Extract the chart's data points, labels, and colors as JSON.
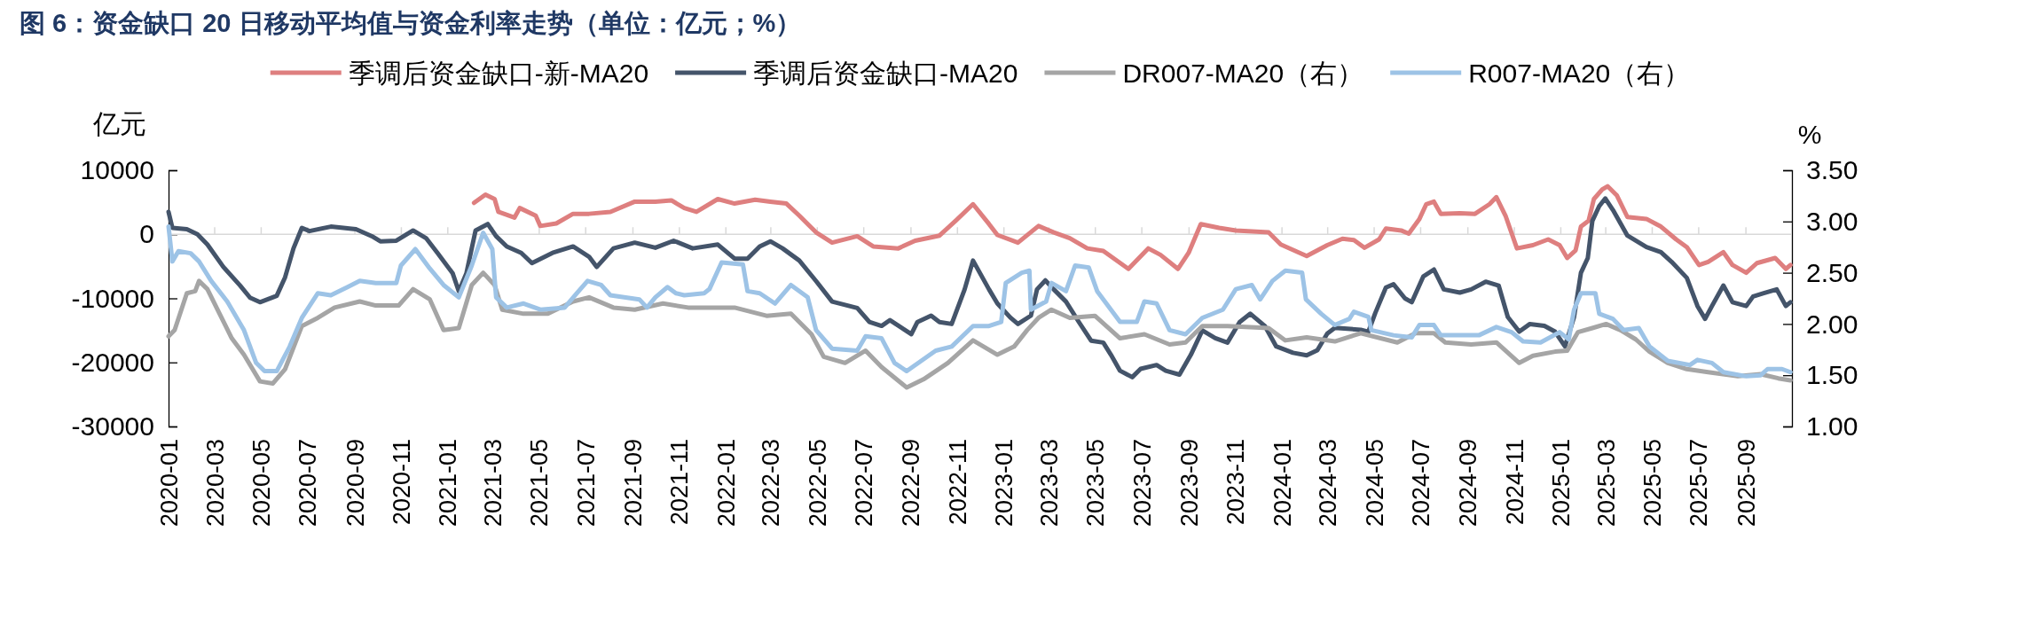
{
  "chart_data": {
    "type": "line",
    "title": "图 6：资金缺口 20 日移动平均值与资金利率走势（单位：亿元；%）",
    "ylabel": "亿元",
    "y2label": "%",
    "xlim": [
      "2020-01-01",
      "2025-11-01"
    ],
    "xticks": [
      "2020-01",
      "2020-03",
      "2020-05",
      "2020-07",
      "2020-09",
      "2020-11",
      "2021-01",
      "2021-03",
      "2021-05",
      "2021-07",
      "2021-09",
      "2021-11",
      "2022-01",
      "2022-03",
      "2022-05",
      "2022-07",
      "2022-09",
      "2022-11",
      "2023-01",
      "2023-03",
      "2023-05",
      "2023-07",
      "2023-09",
      "2023-11",
      "2024-01",
      "2024-03",
      "2024-05",
      "2024-07",
      "2024-09",
      "2024-11",
      "2025-01",
      "2025-03",
      "2025-05",
      "2025-07",
      "2025-09"
    ],
    "ylim": [
      -30000,
      10000
    ],
    "yticks": [
      -30000,
      -20000,
      -10000,
      0,
      10000
    ],
    "y2lim": [
      1.0,
      3.5
    ],
    "y2ticks": [
      {
        "value": 1.0,
        "label": "1.00"
      },
      {
        "value": 1.5,
        "label": "1.50"
      },
      {
        "value": 2.0,
        "label": "2.00"
      },
      {
        "value": 2.5,
        "label": "2.50"
      },
      {
        "value": 3.0,
        "label": "3.00"
      },
      {
        "value": 3.5,
        "label": "3.50"
      }
    ],
    "grid": false,
    "ref_lines": [
      {
        "axis": "y",
        "value": 0,
        "color": "#d9d9d9"
      }
    ],
    "legend": "top",
    "marker": "none",
    "line_style": "solid",
    "series": [
      {
        "name": "季调后资金缺口-新-MA20",
        "color": "#de7f7f",
        "x": [
          "2021-02-05",
          "2021-02-20",
          "2021-03-04",
          "2021-03-09",
          "2021-03-30",
          "2021-04-06",
          "2021-04-27",
          "2021-05-03",
          "2021-05-24",
          "2021-06-15",
          "2021-07-06",
          "2021-08-03",
          "2021-09-04",
          "2021-10-01",
          "2021-10-22",
          "2021-11-08",
          "2021-11-24",
          "2021-12-22",
          "2022-01-13",
          "2022-02-09",
          "2022-03-01",
          "2022-03-22",
          "2022-04-08",
          "2022-04-30",
          "2022-05-21",
          "2022-06-23",
          "2022-07-14",
          "2022-08-16",
          "2022-09-07",
          "2022-10-09",
          "2022-10-31",
          "2022-11-22",
          "2022-12-13",
          "2022-12-24",
          "2023-01-20",
          "2023-02-16",
          "2023-03-08",
          "2023-03-29",
          "2023-04-21",
          "2023-05-12",
          "2023-06-14",
          "2023-07-10",
          "2023-07-26",
          "2023-08-18",
          "2023-09-01",
          "2023-09-17",
          "2023-10-11",
          "2023-11-02",
          "2023-12-15",
          "2023-12-31",
          "2024-02-03",
          "2024-03-01",
          "2024-03-21",
          "2024-04-05",
          "2024-04-19",
          "2024-05-08",
          "2024-05-17",
          "2024-06-06",
          "2024-06-16",
          "2024-06-30",
          "2024-07-09",
          "2024-07-19",
          "2024-07-28",
          "2024-08-22",
          "2024-09-11",
          "2024-09-30",
          "2024-10-09",
          "2024-10-21",
          "2024-11-05",
          "2024-11-26",
          "2024-12-16",
          "2024-12-31",
          "2025-01-10",
          "2025-01-21",
          "2025-01-28",
          "2025-02-07",
          "2025-02-14",
          "2025-02-25",
          "2025-03-04",
          "2025-03-16",
          "2025-03-30",
          "2025-04-24",
          "2025-05-13",
          "2025-06-02",
          "2025-06-16",
          "2025-07-02",
          "2025-07-14",
          "2025-08-03",
          "2025-08-15",
          "2025-09-02",
          "2025-09-16",
          "2025-10-10",
          "2025-10-24",
          "2025-10-30"
        ],
        "values": [
          4900,
          6200,
          5500,
          3500,
          2600,
          4100,
          2900,
          1300,
          1700,
          3200,
          3200,
          3500,
          5100,
          5100,
          5300,
          4100,
          3500,
          5500,
          4800,
          5400,
          5100,
          4800,
          2900,
          300,
          -1300,
          -300,
          -1900,
          -2200,
          -1000,
          -200,
          2200,
          4700,
          1600,
          -100,
          -1300,
          1300,
          300,
          -600,
          -2200,
          -2600,
          -5400,
          -2200,
          -3200,
          -5400,
          -2900,
          1600,
          1000,
          600,
          300,
          -1600,
          -3400,
          -1700,
          -700,
          -900,
          -2100,
          -800,
          900,
          600,
          100,
          2400,
          4700,
          5100,
          3200,
          3300,
          3200,
          4700,
          5800,
          2900,
          -2200,
          -1700,
          -800,
          -1700,
          -3700,
          -2500,
          1200,
          2100,
          5500,
          7000,
          7500,
          6100,
          2700,
          2400,
          1200,
          -800,
          -2000,
          -4800,
          -4300,
          -2800,
          -4800,
          -6000,
          -4500,
          -3700,
          -5400,
          -4800
        ]
      },
      {
        "name": "季调后资金缺口-MA20",
        "color": "#44546a",
        "x": [
          "2020-01-01",
          "2020-01-06",
          "2020-01-25",
          "2020-02-08",
          "2020-02-21",
          "2020-03-13",
          "2020-04-04",
          "2020-04-17",
          "2020-04-30",
          "2020-05-22",
          "2020-06-02",
          "2020-06-13",
          "2020-06-24",
          "2020-07-04",
          "2020-08-01",
          "2020-09-03",
          "2020-09-24",
          "2020-10-05",
          "2020-10-26",
          "2020-11-17",
          "2020-12-04",
          "2020-12-19",
          "2021-01-08",
          "2021-01-16",
          "2021-01-26",
          "2021-02-07",
          "2021-02-23",
          "2021-03-06",
          "2021-03-20",
          "2021-04-08",
          "2021-04-22",
          "2021-05-19",
          "2021-06-15",
          "2021-07-06",
          "2021-07-16",
          "2021-08-07",
          "2021-09-04",
          "2021-10-01",
          "2021-10-25",
          "2021-11-19",
          "2021-12-22",
          "2022-01-13",
          "2022-01-30",
          "2022-02-15",
          "2022-03-01",
          "2022-03-17",
          "2022-04-08",
          "2022-04-30",
          "2022-05-21",
          "2022-06-23",
          "2022-07-09",
          "2022-07-25",
          "2022-08-05",
          "2022-09-02",
          "2022-09-10",
          "2022-09-28",
          "2022-10-09",
          "2022-10-25",
          "2022-11-11",
          "2022-11-22",
          "2022-12-13",
          "2022-12-24",
          "2023-01-10",
          "2023-01-20",
          "2023-02-06",
          "2023-02-14",
          "2023-02-25",
          "2023-03-08",
          "2023-03-24",
          "2023-04-10",
          "2023-04-26",
          "2023-05-12",
          "2023-05-22",
          "2023-06-03",
          "2023-06-19",
          "2023-06-30",
          "2023-07-21",
          "2023-08-02",
          "2023-08-20",
          "2023-09-04",
          "2023-09-19",
          "2023-10-06",
          "2023-10-22",
          "2023-11-07",
          "2023-11-21",
          "2023-12-10",
          "2023-12-25",
          "2024-01-16",
          "2024-02-03",
          "2024-02-17",
          "2024-03-01",
          "2024-03-11",
          "2024-04-14",
          "2024-04-24",
          "2024-05-03",
          "2024-05-17",
          "2024-05-27",
          "2024-06-11",
          "2024-06-20",
          "2024-07-05",
          "2024-07-19",
          "2024-08-01",
          "2024-08-22",
          "2024-09-06",
          "2024-09-25",
          "2024-10-12",
          "2024-10-24",
          "2024-11-08",
          "2024-11-22",
          "2024-12-11",
          "2024-12-25",
          "2025-01-07",
          "2025-01-19",
          "2025-01-28",
          "2025-02-06",
          "2025-02-12",
          "2025-02-21",
          "2025-03-01",
          "2025-03-11",
          "2025-03-30",
          "2025-04-24",
          "2025-05-13",
          "2025-05-27",
          "2025-06-16",
          "2025-06-30",
          "2025-07-10",
          "2025-07-19",
          "2025-08-03",
          "2025-08-15",
          "2025-09-02",
          "2025-09-11",
          "2025-09-25",
          "2025-10-12",
          "2025-10-24",
          "2025-10-30"
        ],
        "values": [
          3500,
          1000,
          800,
          0,
          -1600,
          -5100,
          -8000,
          -9900,
          -10600,
          -9600,
          -6700,
          -2200,
          1000,
          500,
          1200,
          800,
          -300,
          -1100,
          -1000,
          600,
          -600,
          -2900,
          -6100,
          -8900,
          -6100,
          600,
          1600,
          -300,
          -1900,
          -2900,
          -4500,
          -2900,
          -1900,
          -3500,
          -5100,
          -2200,
          -1300,
          -2100,
          -1000,
          -2200,
          -1600,
          -3800,
          -3800,
          -1900,
          -1100,
          -2200,
          -4100,
          -7300,
          -10500,
          -11500,
          -13700,
          -14300,
          -13400,
          -15600,
          -13700,
          -12700,
          -13700,
          -14000,
          -8600,
          -4100,
          -8600,
          -10800,
          -13000,
          -14000,
          -12700,
          -8600,
          -7200,
          -8600,
          -10500,
          -13700,
          -16600,
          -16900,
          -18800,
          -21300,
          -22300,
          -21000,
          -20400,
          -21300,
          -21900,
          -18800,
          -15000,
          -16200,
          -16900,
          -13700,
          -12400,
          -14300,
          -17500,
          -18500,
          -18900,
          -18100,
          -15500,
          -14600,
          -14900,
          -15200,
          -12300,
          -8300,
          -7800,
          -10000,
          -10600,
          -6600,
          -5500,
          -8600,
          -9100,
          -8600,
          -7400,
          -8000,
          -12900,
          -15200,
          -14000,
          -14300,
          -15200,
          -17500,
          -12900,
          -6000,
          -3700,
          2100,
          4400,
          5600,
          3800,
          -200,
          -2000,
          -2800,
          -4300,
          -6800,
          -11200,
          -13200,
          -11200,
          -8000,
          -10600,
          -11200,
          -9700,
          -9200,
          -8600,
          -11200,
          -10600
        ]
      },
      {
        "name": "DR007-MA20（右）",
        "color": "#a5a5a5",
        "axis": "y2",
        "x": [
          "2020-01-01",
          "2020-01-09",
          "2020-01-25",
          "2020-02-05",
          "2020-02-10",
          "2020-02-21",
          "2020-03-08",
          "2020-03-24",
          "2020-04-09",
          "2020-04-30",
          "2020-05-17",
          "2020-06-02",
          "2020-06-24",
          "2020-07-15",
          "2020-08-06",
          "2020-09-08",
          "2020-09-29",
          "2020-10-29",
          "2020-11-17",
          "2020-12-09",
          "2020-12-27",
          "2021-01-16",
          "2021-02-02",
          "2021-02-17",
          "2021-03-04",
          "2021-03-14",
          "2021-04-11",
          "2021-05-13",
          "2021-06-15",
          "2021-07-06",
          "2021-08-07",
          "2021-09-04",
          "2021-10-11",
          "2021-11-13",
          "2021-12-22",
          "2022-01-13",
          "2022-02-24",
          "2022-03-28",
          "2022-04-24",
          "2022-05-10",
          "2022-06-07",
          "2022-07-04",
          "2022-07-25",
          "2022-08-27",
          "2022-09-18",
          "2022-10-20",
          "2022-11-22",
          "2022-12-24",
          "2023-01-15",
          "2023-02-01",
          "2023-02-16",
          "2023-03-05",
          "2023-03-29",
          "2023-05-01",
          "2023-06-03",
          "2023-07-05",
          "2023-08-07",
          "2023-08-28",
          "2023-09-19",
          "2023-10-22",
          "2023-12-15",
          "2024-01-06",
          "2024-02-03",
          "2024-03-11",
          "2024-04-14",
          "2024-06-01",
          "2024-06-25",
          "2024-07-19",
          "2024-08-03",
          "2024-09-06",
          "2024-10-09",
          "2024-11-08",
          "2024-11-26",
          "2024-12-25",
          "2025-01-10",
          "2025-01-24",
          "2025-02-12",
          "2025-03-02",
          "2025-03-21",
          "2025-04-10",
          "2025-04-28",
          "2025-05-22",
          "2025-06-16",
          "2025-07-14",
          "2025-08-22",
          "2025-09-21",
          "2025-10-14",
          "2025-10-30"
        ],
        "values": [
          1.88,
          1.94,
          2.3,
          2.32,
          2.42,
          2.34,
          2.1,
          1.86,
          1.7,
          1.44,
          1.42,
          1.56,
          1.98,
          2.06,
          2.16,
          2.22,
          2.18,
          2.18,
          2.34,
          2.24,
          1.94,
          1.96,
          2.38,
          2.5,
          2.38,
          2.14,
          2.1,
          2.1,
          2.22,
          2.26,
          2.16,
          2.14,
          2.2,
          2.16,
          2.16,
          2.16,
          2.08,
          2.1,
          1.9,
          1.68,
          1.62,
          1.74,
          1.58,
          1.38,
          1.46,
          1.62,
          1.84,
          1.7,
          1.78,
          1.94,
          2.06,
          2.14,
          2.06,
          2.08,
          1.86,
          1.9,
          1.8,
          1.82,
          1.98,
          1.98,
          1.96,
          1.84,
          1.87,
          1.83,
          1.91,
          1.82,
          1.91,
          1.91,
          1.82,
          1.8,
          1.82,
          1.62,
          1.69,
          1.73,
          1.74,
          1.92,
          1.96,
          2.0,
          1.94,
          1.85,
          1.73,
          1.62,
          1.56,
          1.53,
          1.49,
          1.51,
          1.47,
          1.45
        ]
      },
      {
        "name": "R007-MA20（右）",
        "color": "#9dc3e6",
        "axis": "y2",
        "x": [
          "2020-01-01",
          "2020-01-06",
          "2020-01-14",
          "2020-01-30",
          "2020-02-10",
          "2020-02-26",
          "2020-03-18",
          "2020-04-09",
          "2020-04-25",
          "2020-05-06",
          "2020-05-22",
          "2020-06-08",
          "2020-06-24",
          "2020-07-15",
          "2020-08-01",
          "2020-08-23",
          "2020-09-08",
          "2020-09-29",
          "2020-10-26",
          "2020-11-01",
          "2020-11-20",
          "2020-12-09",
          "2020-12-27",
          "2021-01-16",
          "2021-02-02",
          "2021-02-17",
          "2021-03-01",
          "2021-03-06",
          "2021-03-20",
          "2021-04-11",
          "2021-05-03",
          "2021-06-04",
          "2021-06-20",
          "2021-07-04",
          "2021-07-22",
          "2021-08-03",
          "2021-09-10",
          "2021-09-20",
          "2021-10-01",
          "2021-10-17",
          "2021-10-28",
          "2021-11-08",
          "2021-12-04",
          "2021-12-11",
          "2021-12-27",
          "2022-01-24",
          "2022-01-30",
          "2022-02-15",
          "2022-03-07",
          "2022-03-28",
          "2022-04-19",
          "2022-04-30",
          "2022-05-21",
          "2022-06-23",
          "2022-07-04",
          "2022-07-25",
          "2022-08-11",
          "2022-08-27",
          "2022-10-04",
          "2022-10-25",
          "2022-11-22",
          "2022-12-13",
          "2022-12-29",
          "2023-01-04",
          "2023-01-25",
          "2023-02-04",
          "2023-02-06",
          "2023-02-26",
          "2023-03-05",
          "2023-03-24",
          "2023-04-05",
          "2023-04-23",
          "2023-05-04",
          "2023-06-03",
          "2023-06-25",
          "2023-07-05",
          "2023-07-21",
          "2023-08-07",
          "2023-08-28",
          "2023-09-19",
          "2023-10-16",
          "2023-11-02",
          "2023-11-23",
          "2023-12-04",
          "2023-12-20",
          "2024-01-06",
          "2024-01-28",
          "2024-02-02",
          "2024-02-22",
          "2024-03-11",
          "2024-03-30",
          "2024-04-05",
          "2024-04-24",
          "2024-04-28",
          "2024-05-27",
          "2024-06-20",
          "2024-06-30",
          "2024-07-19",
          "2024-07-28",
          "2024-09-16",
          "2024-10-09",
          "2024-10-29",
          "2024-11-13",
          "2024-12-06",
          "2024-12-31",
          "2025-01-12",
          "2025-01-19",
          "2025-01-28",
          "2025-02-16",
          "2025-02-21",
          "2025-03-11",
          "2025-03-25",
          "2025-04-14",
          "2025-04-28",
          "2025-05-22",
          "2025-06-20",
          "2025-06-30",
          "2025-07-19",
          "2025-08-03",
          "2025-09-02",
          "2025-09-21",
          "2025-09-30",
          "2025-10-19",
          "2025-10-30"
        ],
        "values": [
          2.95,
          2.61,
          2.71,
          2.69,
          2.61,
          2.42,
          2.22,
          1.94,
          1.62,
          1.54,
          1.54,
          1.78,
          2.06,
          2.3,
          2.28,
          2.36,
          2.42,
          2.4,
          2.4,
          2.57,
          2.73,
          2.54,
          2.38,
          2.26,
          2.57,
          2.89,
          2.73,
          2.26,
          2.16,
          2.2,
          2.14,
          2.16,
          2.3,
          2.42,
          2.38,
          2.28,
          2.24,
          2.16,
          2.26,
          2.36,
          2.3,
          2.28,
          2.3,
          2.34,
          2.6,
          2.58,
          2.32,
          2.3,
          2.2,
          2.38,
          2.26,
          1.94,
          1.76,
          1.74,
          1.88,
          1.86,
          1.62,
          1.54,
          1.74,
          1.78,
          1.98,
          1.98,
          2.02,
          2.4,
          2.5,
          2.52,
          2.14,
          2.22,
          2.4,
          2.32,
          2.57,
          2.55,
          2.32,
          2.02,
          2.02,
          2.22,
          2.2,
          1.94,
          1.9,
          2.06,
          2.14,
          2.34,
          2.38,
          2.24,
          2.42,
          2.52,
          2.5,
          2.24,
          2.1,
          1.99,
          2.05,
          2.12,
          2.07,
          1.94,
          1.89,
          1.87,
          1.99,
          1.99,
          1.89,
          1.89,
          1.97,
          1.92,
          1.83,
          1.82,
          1.92,
          1.85,
          2.14,
          2.3,
          2.3,
          2.1,
          2.05,
          1.94,
          1.96,
          1.78,
          1.64,
          1.6,
          1.65,
          1.62,
          1.53,
          1.49,
          1.5,
          1.56,
          1.56,
          1.53
        ]
      }
    ]
  }
}
